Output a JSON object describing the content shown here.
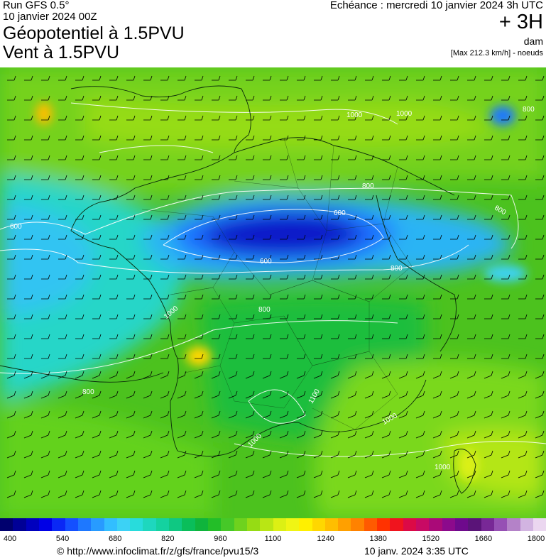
{
  "header": {
    "run": "Run GFS 0.5°",
    "run_date": "10 janvier 2024 00Z",
    "title_line1": "Géopotentiel à 1.5PVU",
    "title_line2": "Vent à 1.5PVU",
    "echeance": "Echéance : mercredi 10 janvier 2024 3h UTC",
    "offset": "+ 3H",
    "unit": "dam",
    "max_info": "[Max 212.3 km/h] - noeuds"
  },
  "contour_labels": [
    "600",
    "800",
    "1000",
    "1100",
    "800",
    "1000",
    "1000",
    "800",
    "600",
    "600",
    "800",
    "800",
    "800",
    "1000",
    "1000",
    "1000"
  ],
  "legend": {
    "colors": [
      "#00006e",
      "#000096",
      "#0000be",
      "#0000e6",
      "#0a28f5",
      "#1450ff",
      "#1e78ff",
      "#289bff",
      "#32beff",
      "#3cd2f5",
      "#28dcdc",
      "#1ed7be",
      "#14d2a0",
      "#0fc882",
      "#0abe5a",
      "#0fb43c",
      "#23be28",
      "#46c828",
      "#6ed21e",
      "#96dc14",
      "#b9e614",
      "#dcf014",
      "#f0f514",
      "#fff000",
      "#ffd700",
      "#ffbe00",
      "#ffa000",
      "#ff8200",
      "#ff5a00",
      "#ff3200",
      "#f0141e",
      "#dc0a46",
      "#c80a64",
      "#aa0a78",
      "#8c0a8c",
      "#6e0a8c",
      "#5a1478",
      "#782896",
      "#9650b4",
      "#b482c8",
      "#d2b4e1",
      "#ebd7f0"
    ],
    "ticks": [
      "400",
      "540",
      "680",
      "820",
      "960",
      "1100",
      "1240",
      "1380",
      "1520",
      "1660",
      "1800"
    ]
  },
  "footer": {
    "url": "© http://www.infoclimat.fr/z/gfs/france/pvu15/3",
    "generated": "10 janv. 2024  3:35 UTC"
  }
}
